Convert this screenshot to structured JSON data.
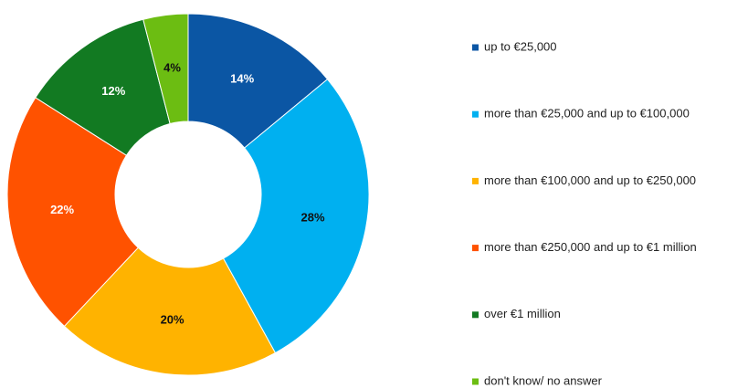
{
  "chart_data": {
    "type": "donut",
    "categories": [
      "up to €25,000",
      "more than €25,000 and up to €100,000",
      "more than €100,000 and up to €250,000",
      "more than €250,000 and up to €1 million",
      "over €1 million",
      "don't know/ no answer"
    ],
    "values": [
      14,
      28,
      20,
      22,
      12,
      4
    ],
    "value_labels": [
      "14%",
      "28%",
      "20%",
      "22%",
      "12%",
      "4%"
    ],
    "colors": [
      "#0b56a4",
      "#00b0f0",
      "#ffb300",
      "#ff5200",
      "#127a22",
      "#6cbd12"
    ],
    "legend": "right"
  }
}
